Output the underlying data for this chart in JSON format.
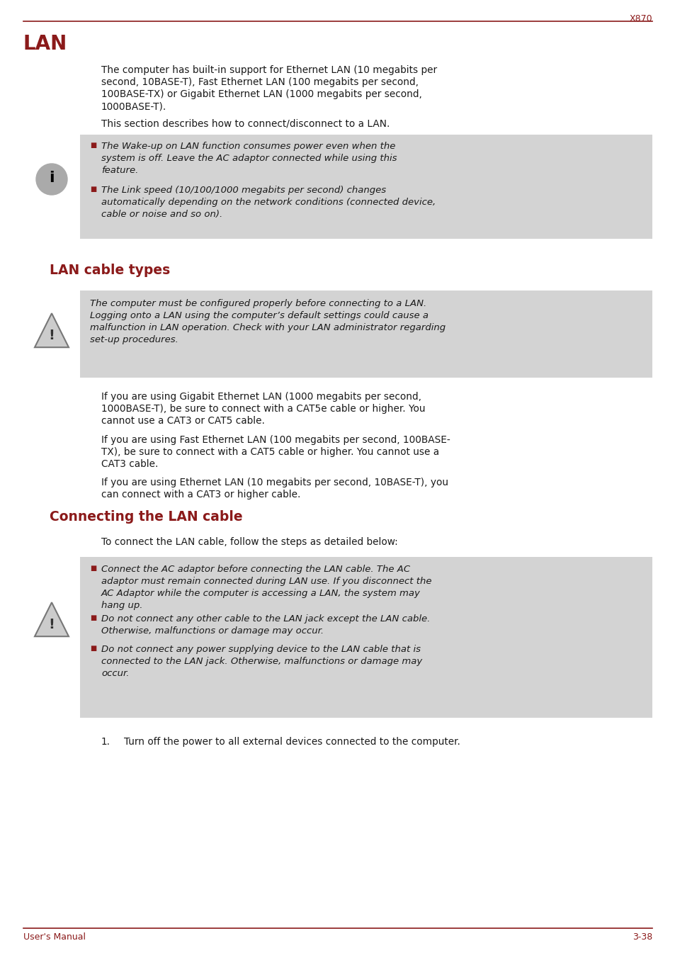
{
  "page_width": 9.54,
  "page_height": 13.45,
  "bg_color": "#ffffff",
  "dark_red": "#8B1A1A",
  "light_gray": "#D3D3D3",
  "text_color": "#1a1a1a",
  "header_text": "X870",
  "footer_left": "User's Manual",
  "footer_right": "3-38",
  "main_title": "LAN",
  "section1_title": "LAN cable types",
  "section2_title": "Connecting the LAN cable",
  "para1_lines": [
    "The computer has built-in support for Ethernet LAN (10 megabits per",
    "second, 10BASE-T), Fast Ethernet LAN (100 megabits per second,",
    "100BASE-TX) or Gigabit Ethernet LAN (1000 megabits per second,",
    "1000BASE-T)."
  ],
  "para2": "This section describes how to connect/disconnect to a LAN.",
  "note1_bullet1_lines": [
    "The Wake-up on LAN function consumes power even when the",
    "system is off. Leave the AC adaptor connected while using this",
    "feature."
  ],
  "note1_bullet2_lines": [
    "The Link speed (10/100/1000 megabits per second) changes",
    "automatically depending on the network conditions (connected device,",
    "cable or noise and so on)."
  ],
  "warning1_lines": [
    "The computer must be configured properly before connecting to a LAN.",
    "Logging onto a LAN using the computer’s default settings could cause a",
    "malfunction in LAN operation. Check with your LAN administrator regarding",
    "set-up procedures."
  ],
  "cable_para1_lines": [
    "If you are using Gigabit Ethernet LAN (1000 megabits per second,",
    "1000BASE-T), be sure to connect with a CAT5e cable or higher. You",
    "cannot use a CAT3 or CAT5 cable."
  ],
  "cable_para2_lines": [
    "If you are using Fast Ethernet LAN (100 megabits per second, 100BASE-",
    "TX), be sure to connect with a CAT5 cable or higher. You cannot use a",
    "CAT3 cable."
  ],
  "cable_para3_lines": [
    "If you are using Ethernet LAN (10 megabits per second, 10BASE-T), you",
    "can connect with a CAT3 or higher cable."
  ],
  "connect_intro": "To connect the LAN cable, follow the steps as detailed below:",
  "warning2_bullet1_lines": [
    "Connect the AC adaptor before connecting the LAN cable. The AC",
    "adaptor must remain connected during LAN use. If you disconnect the",
    "AC Adaptor while the computer is accessing a LAN, the system may",
    "hang up."
  ],
  "warning2_bullet2_lines": [
    "Do not connect any other cable to the LAN jack except the LAN cable.",
    "Otherwise, malfunctions or damage may occur."
  ],
  "warning2_bullet3_lines": [
    "Do not connect any power supplying device to the LAN cable that is",
    "connected to the LAN jack. Otherwise, malfunctions or damage may",
    "occur."
  ],
  "step1": "Turn off the power to all external devices connected to the computer."
}
